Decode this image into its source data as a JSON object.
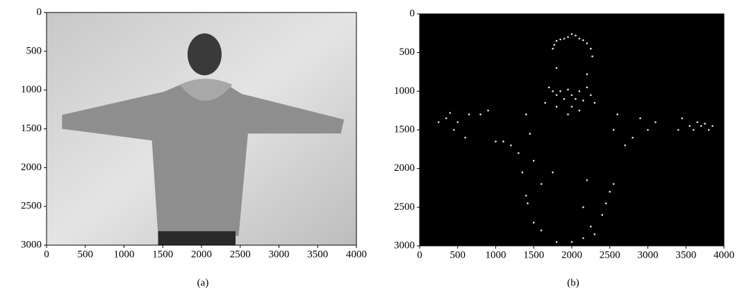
{
  "chart_data": [
    {
      "type": "image",
      "caption": "(a)",
      "xlim": [
        0,
        4000
      ],
      "xticks": [
        0,
        500,
        1000,
        1500,
        2000,
        2500,
        3000,
        3500,
        4000
      ],
      "ylim": [
        3000,
        0
      ],
      "yticks": [
        0,
        500,
        1000,
        1500,
        2000,
        2500,
        3000
      ]
    },
    {
      "type": "scatter",
      "caption": "(b)",
      "color": "#e8e8e8",
      "background": "#000000",
      "xlim": [
        0,
        4000
      ],
      "xticks": [
        0,
        500,
        1000,
        1500,
        2000,
        2500,
        3000,
        3500,
        4000
      ],
      "ylim": [
        3000,
        0
      ],
      "yticks": [
        0,
        500,
        1000,
        1500,
        2000,
        2500,
        3000
      ],
      "x": [
        1770,
        1800,
        1850,
        1900,
        1950,
        2000,
        2050,
        2100,
        2150,
        2200,
        2250,
        1750,
        2270,
        1700,
        1750,
        1800,
        1850,
        1900,
        1950,
        2000,
        2050,
        2100,
        2150,
        2200,
        2250,
        2300,
        1650,
        1800,
        2000,
        2100,
        1950,
        1800,
        2200,
        250,
        350,
        400,
        450,
        500,
        600,
        650,
        800,
        900,
        1000,
        1100,
        1200,
        1300,
        1350,
        1400,
        1450,
        1500,
        2550,
        2600,
        2700,
        2800,
        2900,
        3000,
        3100,
        3400,
        3450,
        3550,
        3600,
        3650,
        3700,
        3750,
        3800,
        3850,
        1400,
        1420,
        1500,
        1600,
        1800,
        2000,
        2150,
        2300,
        2400,
        2450,
        2500,
        2550,
        2200,
        2150,
        2250,
        1750,
        1600
      ],
      "values": [
        400,
        350,
        330,
        320,
        300,
        260,
        280,
        320,
        340,
        380,
        450,
        450,
        550,
        950,
        1000,
        1050,
        1000,
        1100,
        980,
        1050,
        1100,
        1000,
        1120,
        950,
        1050,
        1150,
        1150,
        1200,
        1200,
        1250,
        1300,
        700,
        780,
        1400,
        1350,
        1280,
        1500,
        1400,
        1600,
        1300,
        1300,
        1250,
        1650,
        1650,
        1700,
        1800,
        2050,
        1300,
        1550,
        1900,
        1500,
        1300,
        1700,
        1600,
        1350,
        1500,
        1400,
        1500,
        1350,
        1450,
        1500,
        1400,
        1450,
        1420,
        1500,
        1450,
        2350,
        2450,
        2700,
        2800,
        2950,
        2950,
        2900,
        2850,
        2600,
        2450,
        2300,
        2200,
        2150,
        2500,
        2750,
        2050,
        2200
      ]
    }
  ]
}
